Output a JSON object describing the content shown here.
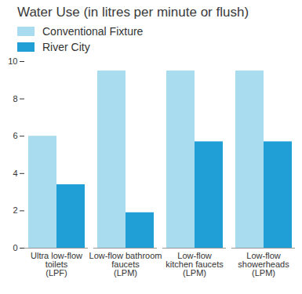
{
  "chart_data": {
    "type": "bar",
    "title": "Water Use (in litres per minute or flush)",
    "categories": [
      "Ultra low-flow\ntoilets\n(LPF)",
      "Low-flow bathroom\nfaucets\n(LPM)",
      "Low-flow\nkitchen faucets\n(LPM)",
      "Low-flow\nshowerheads\n(LPM)"
    ],
    "series": [
      {
        "name": "Conventional Fixture",
        "color": "#a9dcee",
        "values": [
          6,
          9.5,
          9.5,
          9.5
        ]
      },
      {
        "name": "River City",
        "color": "#1f9fd6",
        "values": [
          3.4,
          1.9,
          5.7,
          5.7
        ]
      }
    ],
    "ylim": [
      0,
      10
    ],
    "yticks": [
      0,
      2,
      4,
      6,
      8,
      10
    ],
    "grid": false,
    "legend": "top-left"
  }
}
